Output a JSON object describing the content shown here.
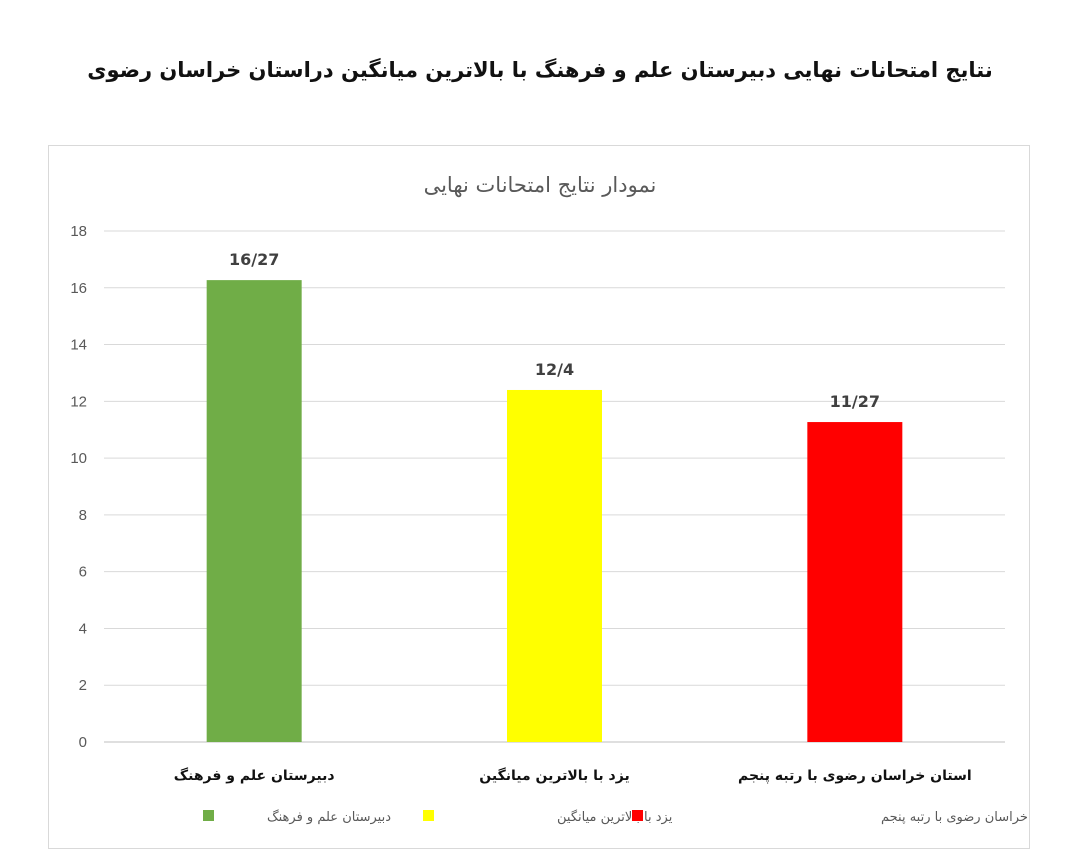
{
  "page": {
    "title": "نتایج امتحانات نهایی دبیرستان علم و فرهنگ با بالاترین میانگین دراستان خراسان رضوی"
  },
  "chart_data": {
    "type": "bar",
    "title": "نمودار نتایج امتحانات نهایی",
    "categories": [
      "دبیرستان  علم و فرهنگ",
      "یزد با بالاترین میانگین",
      "استان خراسان رضوی با رتبه پنجم"
    ],
    "values": [
      16.27,
      12.4,
      11.27
    ],
    "data_labels": [
      "16/27",
      "12/4",
      "11/27"
    ],
    "colors": [
      "#70ad47",
      "#ffff00",
      "#ff0000"
    ],
    "ylim": [
      0,
      18
    ],
    "yticks": [
      0,
      2,
      4,
      6,
      8,
      10,
      12,
      14,
      16,
      18
    ],
    "grid": true,
    "xlabel": "",
    "ylabel": "",
    "legend": {
      "placement": "bottom",
      "entries": [
        "دبیرستان  علم و فرهنگ",
        "یزد با بالاترین میانگین",
        "استان خراسان رضوی با رتبه پنجم"
      ]
    }
  }
}
